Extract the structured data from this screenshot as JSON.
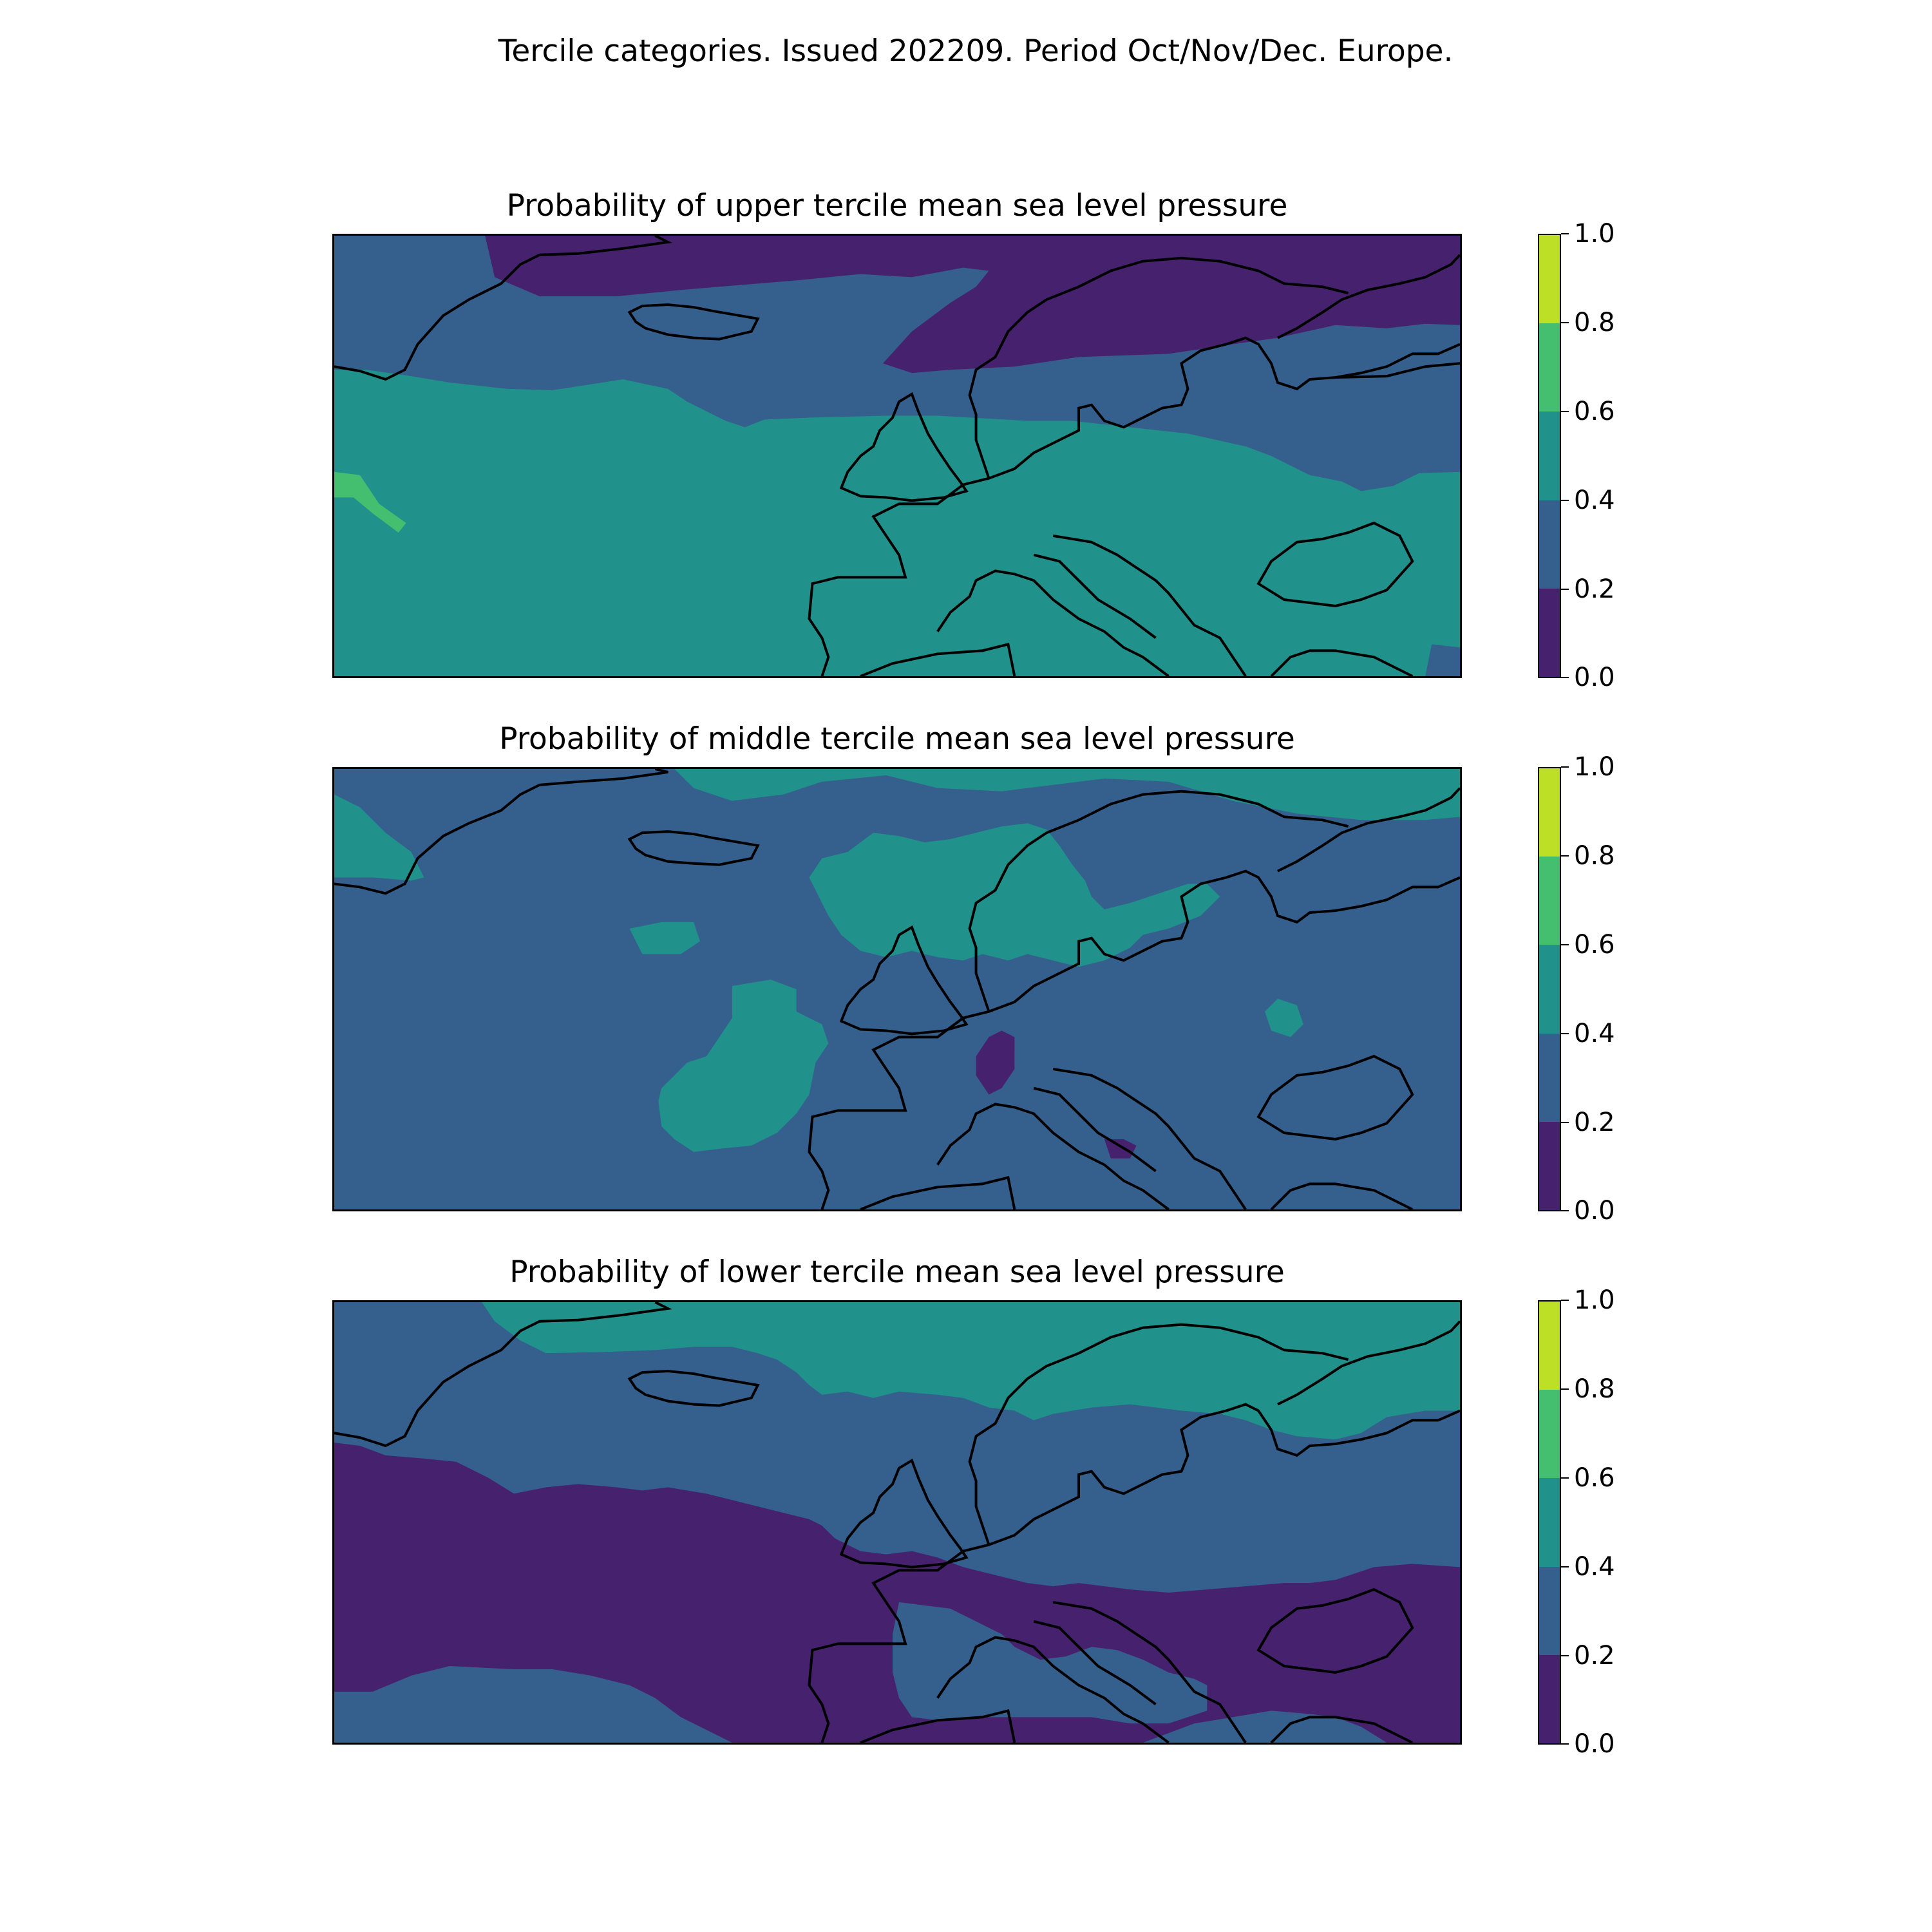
{
  "figure": {
    "suptitle": "Tercile categories. Issued 202209. Period Oct/Nov/Dec. Europe."
  },
  "colorbar": {
    "ticks": [
      "0.0",
      "0.2",
      "0.4",
      "0.6",
      "0.8",
      "1.0"
    ],
    "levels": [
      0.0,
      0.2,
      0.4,
      0.6,
      0.8,
      1.0
    ],
    "colors": [
      "#46216d",
      "#355f8d",
      "#21918c",
      "#44bf70",
      "#bddf26"
    ]
  },
  "chart_data": [
    {
      "type": "heatmap",
      "title": "Probability of upper tercile mean sea level pressure",
      "dominant_bin": "0.4–0.6 over the Atlantic and central/southern Europe; 0.2–0.4 over Greenland, Scandinavia and the east; 0.0–0.2 in the far north",
      "value_range": [
        0.0,
        1.0
      ]
    },
    {
      "type": "heatmap",
      "title": "Probability of middle tercile mean sea level pressure",
      "dominant_bin": "0.2–0.4 over most of the domain; 0.4–0.6 patches over Scandinavia, the Arctic and west of Iberia; small 0.0–0.2 spots over the Alps and southern Italy",
      "value_range": [
        0.0,
        1.0
      ]
    },
    {
      "type": "heatmap",
      "title": "Probability of lower tercile mean sea level pressure",
      "dominant_bin": "0.0–0.2 over the subtropical Atlantic, Iberia, France, the Balkans and the Black Sea; 0.2–0.4 elsewhere; 0.4–0.6 in the Arctic and northern Scandinavia",
      "value_range": [
        0.0,
        1.0
      ]
    }
  ]
}
